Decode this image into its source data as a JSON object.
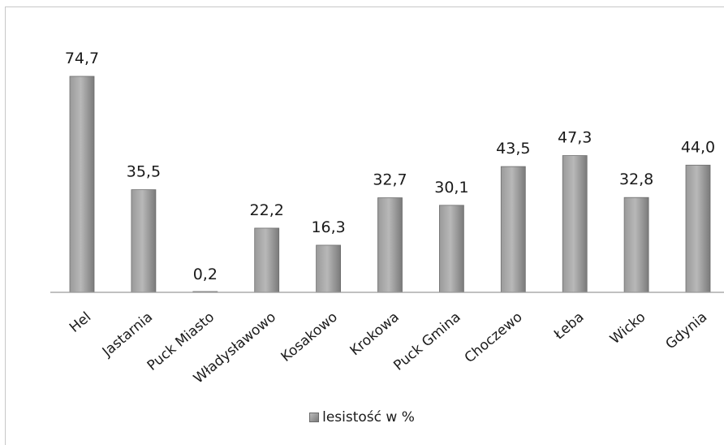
{
  "chart_data": {
    "type": "bar",
    "title": "",
    "xlabel": "",
    "ylabel": "",
    "categories": [
      "Hel",
      "Jastarnia",
      "Puck Miasto",
      "Władysławowo",
      "Kosakowo",
      "Krokowa",
      "Puck Gmina",
      "Choczewo",
      "Łeba",
      "Wicko",
      "Gdynia"
    ],
    "series": [
      {
        "name": "lesistość w %",
        "values": [
          74.7,
          35.5,
          0.2,
          22.2,
          16.3,
          32.7,
          30.1,
          43.5,
          47.3,
          32.8,
          44.0
        ],
        "labels": [
          "74,7",
          "35,5",
          "0,2",
          "22,2",
          "16,3",
          "32,7",
          "30,1",
          "43,5",
          "47,3",
          "32,8",
          "44,0"
        ]
      }
    ],
    "ylim": [
      0,
      75
    ],
    "grid": false,
    "legend_position": "bottom",
    "colors": {
      "bar_light": "#b0b0b0",
      "bar_dark": "#6e6e6e",
      "axis": "#9a9a9a"
    }
  }
}
